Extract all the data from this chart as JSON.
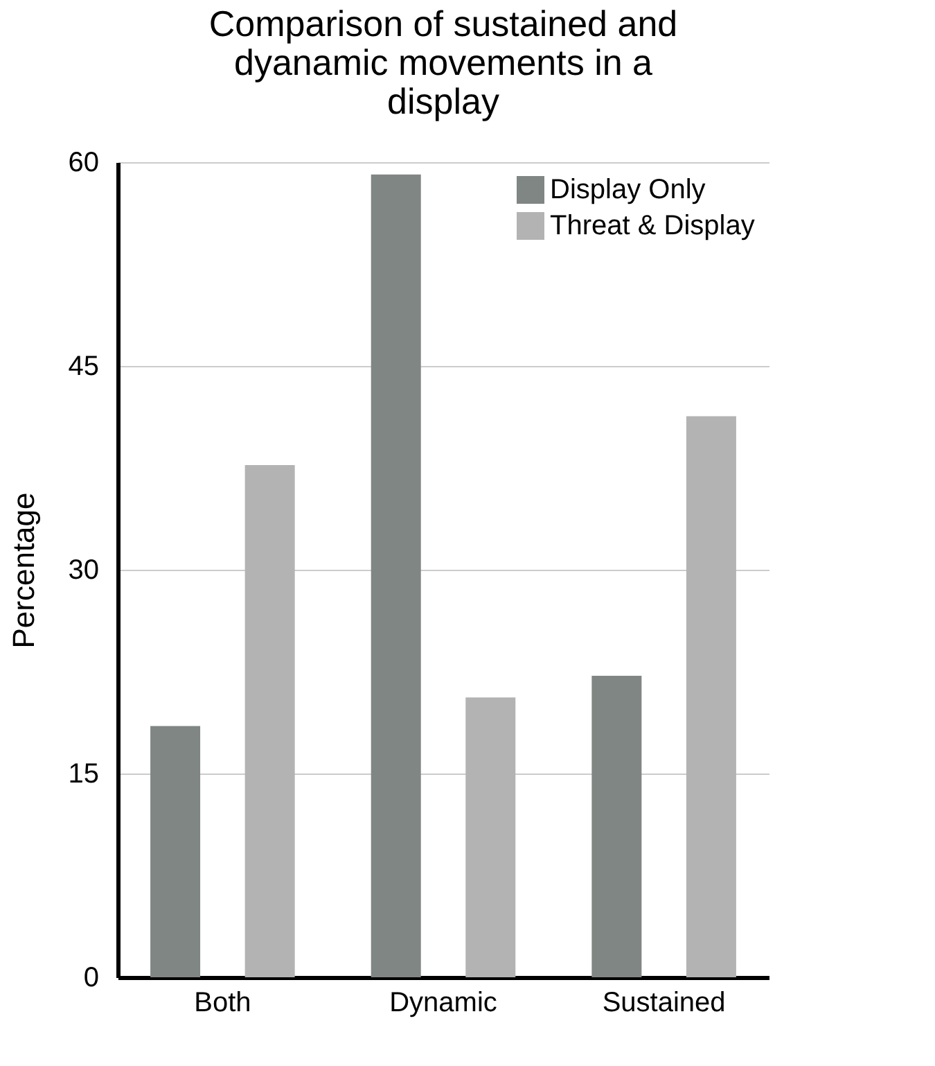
{
  "chart_data": {
    "type": "bar",
    "title": [
      "Comparison of sustained and",
      "dyanamic movements in a",
      "display"
    ],
    "ylabel": "Percentage",
    "categories": [
      "Both",
      "Dynamic",
      "Sustained"
    ],
    "series": [
      {
        "name": "Display Only",
        "color": "#808683",
        "values": [
          18.5,
          59.1,
          22.2
        ]
      },
      {
        "name": "Threat & Display",
        "color": "#b3b3b3",
        "values": [
          37.7,
          20.6,
          41.3
        ]
      }
    ],
    "ylim": [
      0,
      60
    ],
    "yticks": [
      0,
      15,
      30,
      45,
      60
    ],
    "grid": "y",
    "legend": "top right"
  }
}
